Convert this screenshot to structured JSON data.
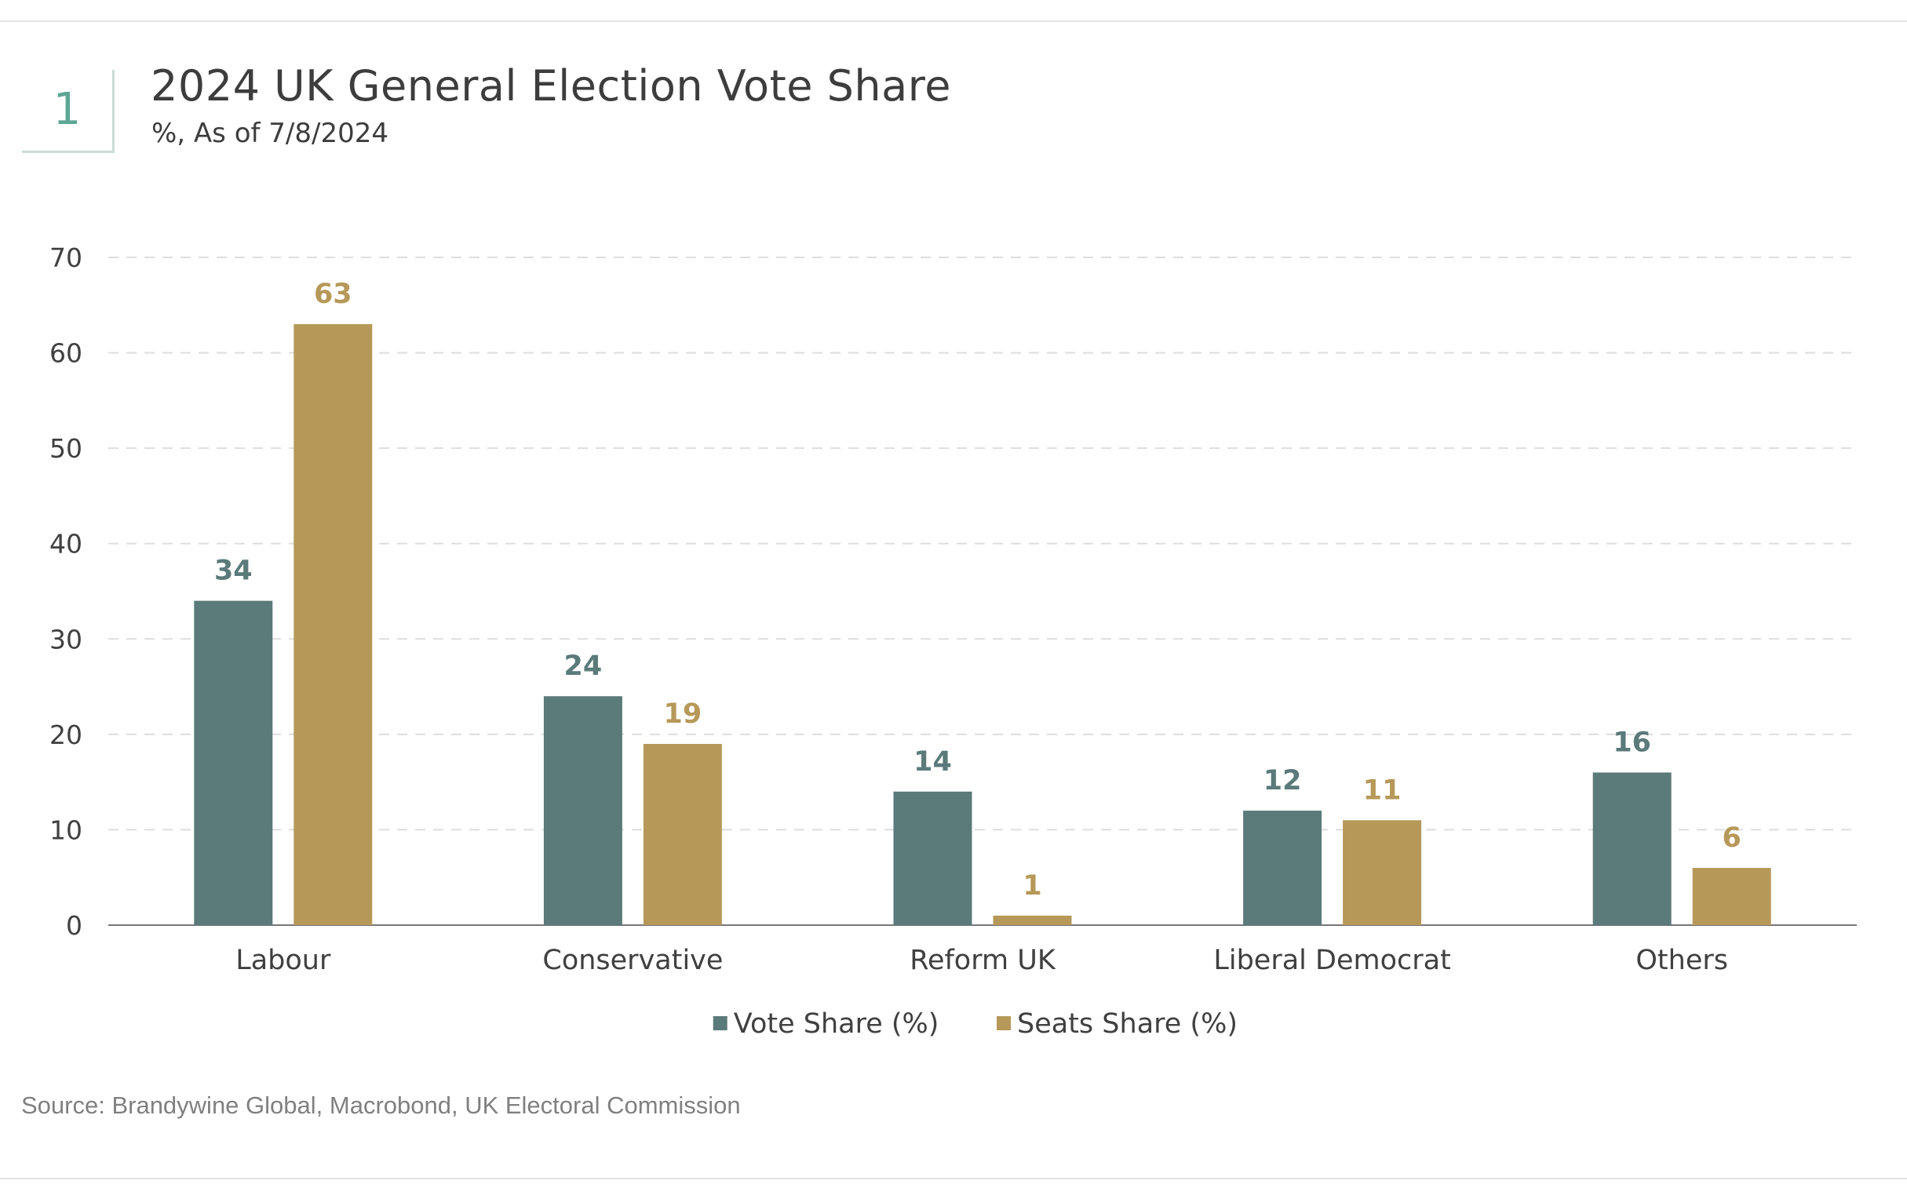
{
  "header": {
    "figure_number": "1",
    "title": "2024 UK General Election Vote Share",
    "subtitle": "%, As of 7/8/2024"
  },
  "source": "Source: Brandywine Global, Macrobond, UK Electoral Commission",
  "chart_data": {
    "type": "bar",
    "title": "2024 UK General Election Vote Share",
    "subtitle": "%, As of 7/8/2024",
    "xlabel": "",
    "ylabel": "",
    "ylim": [
      0,
      70
    ],
    "yticks": [
      0,
      10,
      20,
      30,
      40,
      50,
      60,
      70
    ],
    "grid": true,
    "legend_position": "bottom-center",
    "categories": [
      "Labour",
      "Conservative",
      "Reform UK",
      "Liberal Democrat",
      "Others"
    ],
    "series": [
      {
        "name": "Vote Share (%)",
        "color": "#5b7a7a",
        "values": [
          34,
          24,
          14,
          12,
          16
        ]
      },
      {
        "name": "Seats Share (%)",
        "color": "#b69859",
        "values": [
          63,
          19,
          1,
          11,
          6
        ]
      }
    ]
  }
}
